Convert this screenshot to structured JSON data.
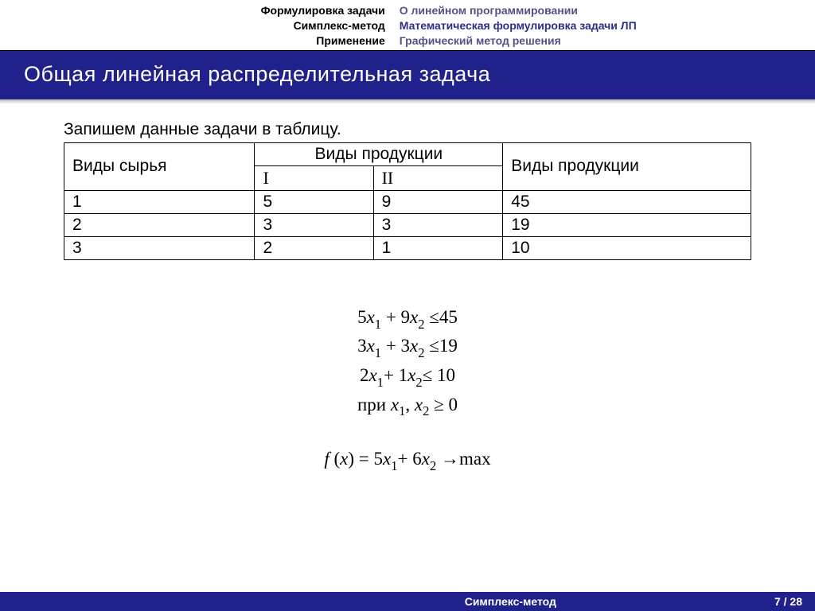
{
  "colors": {
    "brand": "#21218c",
    "nav_sub_dim": "#525286",
    "nav_sub_current": "#2d2d8a",
    "text": "#000000",
    "background": "#ffffff",
    "border": "#000000"
  },
  "nav": {
    "left": [
      "Формулировка задачи",
      "Симплекс-метод",
      "Применение"
    ],
    "right": [
      "О линейном программировании",
      "Математическая формулировка задачи ЛП",
      "Графический метод решения"
    ],
    "right_current_index": 1
  },
  "title": "Общая линейная распределительная задача",
  "intro": "Запишем данные задачи в таблицу.",
  "table": {
    "headers": {
      "col1": "Виды сырья",
      "products_span": "Виды продукции",
      "products_sub": [
        "I",
        "II"
      ],
      "col_last": "Виды продукции"
    },
    "rows": [
      [
        "1",
        "5",
        "9",
        "45"
      ],
      [
        "2",
        "3",
        "3",
        "19"
      ],
      [
        "3",
        "2",
        "1",
        "10"
      ]
    ]
  },
  "constraints": {
    "lines": [
      {
        "a": "5",
        "b": "9",
        "rhs": "45"
      },
      {
        "a": "3",
        "b": "3",
        "rhs": "19"
      },
      {
        "a": "2",
        "b": "1",
        "rhs": "10"
      }
    ],
    "nonneg_prefix": "при ",
    "nonneg_suffix": " ≥ 0"
  },
  "objective": {
    "c1": "5",
    "c2": "6",
    "arrow": "→max"
  },
  "footer": {
    "center": "Симплекс-метод",
    "page": "7",
    "total": "28",
    "sep": " / "
  }
}
